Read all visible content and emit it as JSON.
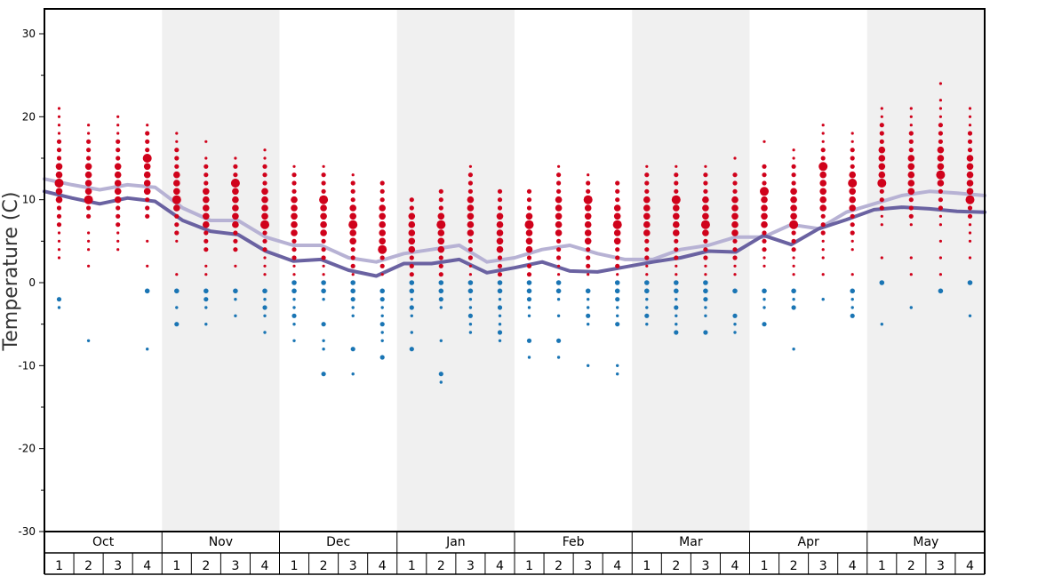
{
  "chart_data": {
    "type": "scatter",
    "title": "",
    "ylabel": "Temperature (C)",
    "ylim": [
      -30,
      33
    ],
    "y_ticks": [
      30,
      20,
      10,
      0,
      -10,
      -20,
      -30
    ],
    "y_tick_labels": [
      "30",
      "20",
      "10",
      "0",
      "-10",
      "-20",
      "-30"
    ],
    "months": [
      "Oct",
      "Nov",
      "Dec",
      "Jan",
      "Feb",
      "Mar",
      "Apr",
      "May"
    ],
    "weeks": [
      "1",
      "2",
      "3",
      "4"
    ],
    "shaded_months": [
      "Nov",
      "Jan",
      "Mar",
      "May"
    ],
    "colors": {
      "warm": "#d0021b",
      "cold": "#1a75b4",
      "high_line": "#b7b2d4",
      "low_line": "#6a62a1",
      "shade": "#f0f0f0"
    },
    "series": [
      {
        "name": "",
        "color": "#b7b2d4",
        "values": [
          12.5,
          11.8,
          11.2,
          11.8,
          11.5,
          9,
          7.5,
          7.5,
          5.5,
          4.5,
          4.5,
          3,
          2.5,
          3.5,
          4,
          4.5,
          2.5,
          3,
          4,
          4.5,
          3.5,
          2.8,
          2.8,
          4,
          4.5,
          5.5,
          5.5,
          7,
          6.5,
          8.5,
          9.5,
          10.5,
          11,
          10.8,
          10.5
        ]
      },
      {
        "name": "",
        "color": "#6a62a1",
        "values": [
          11,
          10.2,
          9.5,
          10.2,
          9.8,
          7.5,
          6.2,
          5.8,
          3.8,
          2.6,
          2.8,
          1.5,
          0.8,
          2.3,
          2.3,
          2.8,
          1.2,
          1.8,
          2.5,
          1.4,
          1.3,
          1.9,
          2.5,
          3,
          3.8,
          3.7,
          5.7,
          4.6,
          6.5,
          7.6,
          8.8,
          9.1,
          8.9,
          8.6,
          8.5
        ]
      }
    ],
    "observations": [
      {
        "month": "Oct",
        "week": "1",
        "warm": [
          3,
          4,
          5,
          6,
          7,
          8,
          9,
          10,
          11,
          12,
          13,
          14,
          15,
          16,
          17,
          18,
          19,
          20,
          21
        ],
        "cold": [
          -2,
          -3
        ]
      },
      {
        "month": "Oct",
        "week": "2",
        "warm": [
          2,
          4,
          5,
          6,
          8,
          9,
          10,
          11,
          12,
          13,
          14,
          15,
          16,
          17,
          18,
          19
        ],
        "cold": [
          -7
        ]
      },
      {
        "month": "Oct",
        "week": "3",
        "warm": [
          4,
          5,
          6,
          7,
          8,
          9,
          10,
          11,
          12,
          13,
          14,
          15,
          16,
          17,
          18,
          19,
          20
        ],
        "cold": []
      },
      {
        "month": "Oct",
        "week": "4",
        "warm": [
          2,
          5,
          8,
          9,
          10,
          11,
          12,
          13,
          14,
          15,
          16,
          17,
          18,
          19
        ],
        "cold": [
          -1,
          -8
        ]
      },
      {
        "month": "Nov",
        "week": "1",
        "warm": [
          1,
          5,
          6,
          7,
          8,
          9,
          10,
          11,
          12,
          13,
          14,
          15,
          16,
          17,
          18
        ],
        "cold": [
          -1,
          -3,
          -5
        ]
      },
      {
        "month": "Nov",
        "week": "2",
        "warm": [
          1,
          2,
          4,
          5,
          6,
          7,
          8,
          9,
          10,
          11,
          12,
          13,
          14,
          15,
          17
        ],
        "cold": [
          -1,
          -2,
          -3,
          -5
        ]
      },
      {
        "month": "Nov",
        "week": "3",
        "warm": [
          2,
          4,
          5,
          6,
          7,
          8,
          9,
          10,
          11,
          12,
          13,
          14,
          15
        ],
        "cold": [
          -1,
          -2,
          -4
        ]
      },
      {
        "month": "Nov",
        "week": "4",
        "warm": [
          1,
          2,
          3,
          4,
          5,
          6,
          7,
          8,
          9,
          10,
          11,
          12,
          13,
          14,
          15,
          16
        ],
        "cold": [
          -1,
          -2,
          -3,
          -4,
          -6
        ]
      },
      {
        "month": "Dec",
        "week": "1",
        "warm": [
          1,
          2,
          3,
          4,
          5,
          6,
          7,
          8,
          9,
          10,
          11,
          12,
          13,
          14
        ],
        "cold": [
          0,
          -1,
          -2,
          -3,
          -4,
          -5,
          -7
        ]
      },
      {
        "month": "Dec",
        "week": "2",
        "warm": [
          1,
          2,
          3,
          4,
          5,
          6,
          7,
          8,
          9,
          10,
          11,
          12,
          13,
          14
        ],
        "cold": [
          0,
          -1,
          -2,
          -5,
          -7,
          -8,
          -11
        ]
      },
      {
        "month": "Dec",
        "week": "3",
        "warm": [
          1,
          2,
          3,
          4,
          5,
          6,
          7,
          8,
          9,
          10,
          11,
          12,
          13
        ],
        "cold": [
          0,
          -1,
          -2,
          -3,
          -4,
          -8,
          -11
        ]
      },
      {
        "month": "Dec",
        "week": "4",
        "warm": [
          1,
          2,
          3,
          4,
          5,
          6,
          7,
          8,
          9,
          10,
          11,
          12
        ],
        "cold": [
          -1,
          -2,
          -3,
          -4,
          -5,
          -6,
          -7,
          -9
        ]
      },
      {
        "month": "Jan",
        "week": "1",
        "warm": [
          1,
          2,
          3,
          4,
          5,
          6,
          7,
          8,
          9,
          10
        ],
        "cold": [
          0,
          -1,
          -2,
          -3,
          -4,
          -6,
          -8
        ]
      },
      {
        "month": "Jan",
        "week": "2",
        "warm": [
          1,
          2,
          3,
          4,
          5,
          6,
          7,
          8,
          9,
          10,
          11
        ],
        "cold": [
          0,
          -1,
          -2,
          -3,
          -7,
          -11,
          -12
        ]
      },
      {
        "month": "Jan",
        "week": "3",
        "warm": [
          1,
          2,
          3,
          4,
          5,
          6,
          7,
          8,
          9,
          10,
          11,
          12,
          13,
          14
        ],
        "cold": [
          0,
          -1,
          -2,
          -3,
          -4,
          -5,
          -6
        ]
      },
      {
        "month": "Jan",
        "week": "4",
        "warm": [
          1,
          2,
          3,
          4,
          5,
          6,
          7,
          8,
          9,
          10,
          11
        ],
        "cold": [
          0,
          -1,
          -2,
          -3,
          -4,
          -5,
          -6,
          -7
        ]
      },
      {
        "month": "Feb",
        "week": "1",
        "warm": [
          1,
          2,
          3,
          4,
          5,
          6,
          7,
          8,
          9,
          10,
          11
        ],
        "cold": [
          0,
          -1,
          -2,
          -3,
          -4,
          -7,
          -9
        ]
      },
      {
        "month": "Feb",
        "week": "2",
        "warm": [
          1,
          2,
          3,
          4,
          5,
          6,
          7,
          8,
          9,
          10,
          11,
          12,
          13,
          14
        ],
        "cold": [
          0,
          -1,
          -2,
          -4,
          -7,
          -9
        ]
      },
      {
        "month": "Feb",
        "week": "3",
        "warm": [
          1,
          2,
          3,
          4,
          5,
          6,
          7,
          8,
          9,
          10,
          11,
          12,
          13
        ],
        "cold": [
          -1,
          -2,
          -3,
          -4,
          -5,
          -10
        ]
      },
      {
        "month": "Feb",
        "week": "4",
        "warm": [
          1,
          2,
          3,
          4,
          5,
          6,
          7,
          8,
          9,
          10,
          11,
          12
        ],
        "cold": [
          0,
          -1,
          -2,
          -3,
          -4,
          -5,
          -10,
          -11
        ]
      },
      {
        "month": "Mar",
        "week": "1",
        "warm": [
          1,
          2,
          3,
          4,
          5,
          6,
          7,
          8,
          9,
          10,
          11,
          12,
          13,
          14
        ],
        "cold": [
          0,
          -1,
          -2,
          -3,
          -4,
          -5
        ]
      },
      {
        "month": "Mar",
        "week": "2",
        "warm": [
          1,
          2,
          3,
          4,
          5,
          6,
          7,
          8,
          9,
          10,
          11,
          12,
          13,
          14
        ],
        "cold": [
          0,
          -1,
          -2,
          -3,
          -4,
          -5,
          -6
        ]
      },
      {
        "month": "Mar",
        "week": "3",
        "warm": [
          1,
          2,
          3,
          4,
          5,
          6,
          7,
          8,
          9,
          10,
          11,
          12,
          13,
          14
        ],
        "cold": [
          0,
          -1,
          -2,
          -3,
          -4,
          -6
        ]
      },
      {
        "month": "Mar",
        "week": "4",
        "warm": [
          1,
          2,
          3,
          4,
          5,
          6,
          7,
          8,
          9,
          10,
          11,
          12,
          13,
          15
        ],
        "cold": [
          -1,
          -4,
          -5,
          -6
        ]
      },
      {
        "month": "Apr",
        "week": "1",
        "warm": [
          2,
          3,
          4,
          5,
          6,
          7,
          8,
          9,
          10,
          11,
          12,
          13,
          14,
          17
        ],
        "cold": [
          -1,
          -2,
          -3,
          -5
        ]
      },
      {
        "month": "Apr",
        "week": "2",
        "warm": [
          1,
          2,
          3,
          4,
          5,
          6,
          7,
          8,
          9,
          10,
          11,
          12,
          13,
          14,
          15,
          16
        ],
        "cold": [
          -1,
          -2,
          -3,
          -8
        ]
      },
      {
        "month": "Apr",
        "week": "3",
        "warm": [
          1,
          3,
          4,
          5,
          6,
          7,
          8,
          9,
          10,
          11,
          12,
          13,
          14,
          15,
          16,
          17,
          18,
          19
        ],
        "cold": [
          -2
        ]
      },
      {
        "month": "Apr",
        "week": "4",
        "warm": [
          1,
          4,
          5,
          6,
          7,
          8,
          9,
          10,
          11,
          12,
          13,
          14,
          15,
          16,
          17,
          18
        ],
        "cold": [
          -1,
          -2,
          -3,
          -4
        ]
      },
      {
        "month": "May",
        "week": "1",
        "warm": [
          3,
          7,
          8,
          9,
          10,
          11,
          12,
          13,
          14,
          15,
          16,
          17,
          18,
          19,
          20,
          21
        ],
        "cold": [
          0,
          -5
        ]
      },
      {
        "month": "May",
        "week": "2",
        "warm": [
          1,
          3,
          7,
          8,
          9,
          10,
          11,
          12,
          13,
          14,
          15,
          16,
          17,
          18,
          19,
          20,
          21
        ],
        "cold": [
          -3
        ]
      },
      {
        "month": "May",
        "week": "3",
        "warm": [
          1,
          3,
          5,
          7,
          8,
          9,
          10,
          11,
          12,
          13,
          14,
          15,
          16,
          17,
          18,
          19,
          20,
          21,
          22,
          24
        ],
        "cold": [
          -1
        ]
      },
      {
        "month": "May",
        "week": "4",
        "warm": [
          3,
          5,
          6,
          7,
          8,
          9,
          10,
          11,
          12,
          13,
          14,
          15,
          16,
          17,
          18,
          19,
          20,
          21
        ],
        "cold": [
          0,
          -4
        ]
      }
    ]
  }
}
